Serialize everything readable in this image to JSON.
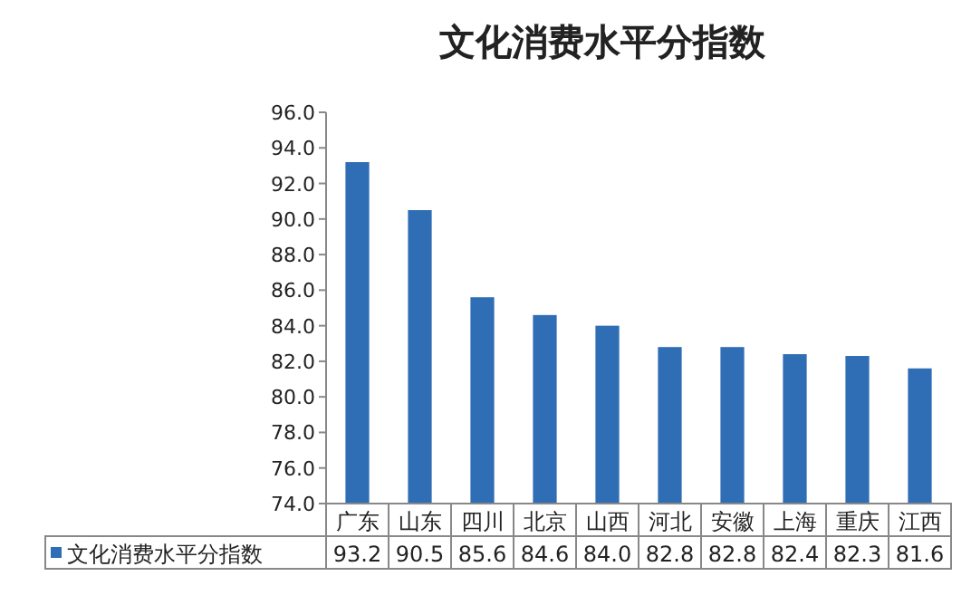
{
  "chart_data": {
    "type": "bar",
    "title": "文化消费水平分指数",
    "categories": [
      "广东",
      "山东",
      "四川",
      "北京",
      "山西",
      "河北",
      "安徽",
      "上海",
      "重庆",
      "江西"
    ],
    "series": [
      {
        "name": "文化消费水平分指数",
        "color": "#2f6db5",
        "values": [
          93.2,
          90.5,
          85.6,
          84.6,
          84.0,
          82.8,
          82.8,
          82.4,
          82.3,
          81.6
        ]
      }
    ],
    "ylim": [
      74,
      96
    ],
    "yticks": [
      {
        "value": 74,
        "label": "74.0"
      },
      {
        "value": 76,
        "label": "76.0"
      },
      {
        "value": 78,
        "label": "78.0"
      },
      {
        "value": 80,
        "label": "80.0"
      },
      {
        "value": 82,
        "label": "82.0"
      },
      {
        "value": 84,
        "label": "84.0"
      },
      {
        "value": 86,
        "label": "86.0"
      },
      {
        "value": 88,
        "label": "88.0"
      },
      {
        "value": 90,
        "label": "90.0"
      },
      {
        "value": 92,
        "label": "92.0"
      },
      {
        "value": 94,
        "label": "94.0"
      },
      {
        "value": 96,
        "label": "96.0"
      }
    ],
    "value_labels": [
      "93.2",
      "90.5",
      "85.6",
      "84.6",
      "84.0",
      "82.8",
      "82.8",
      "82.4",
      "82.3",
      "81.6"
    ]
  }
}
